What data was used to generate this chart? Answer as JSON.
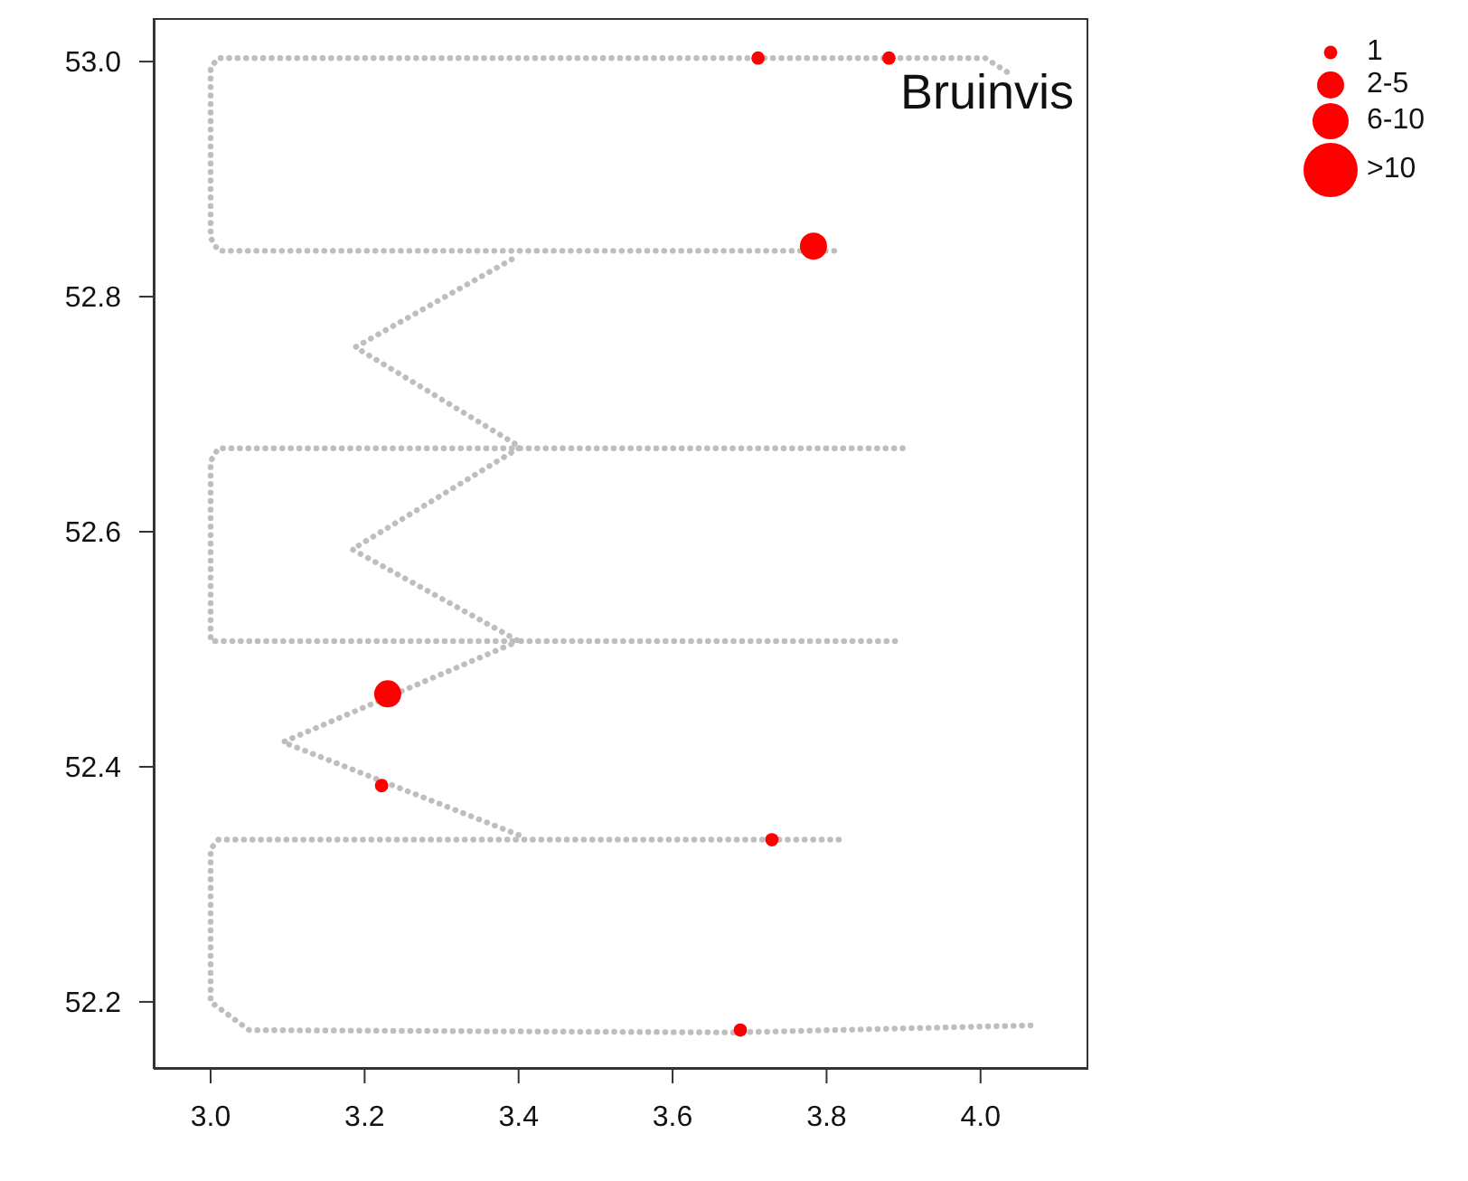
{
  "chart_data": {
    "type": "scatter",
    "title": "Bruinvis",
    "xlim": [
      2.926,
      4.14
    ],
    "ylim": [
      52.143,
      53.037
    ],
    "xticks": [
      {
        "value": 3,
        "label": "3.0"
      },
      3.2,
      3.4,
      3.6,
      3.8,
      {
        "value": 4,
        "label": "4.0"
      }
    ],
    "yticks": [
      52.2,
      52.4,
      52.6,
      52.8,
      {
        "value": 53,
        "label": "53.0"
      }
    ],
    "grid": false,
    "legend": "top right",
    "series": [
      {
        "type": "line",
        "line_style": "dotted",
        "color": "#bebebe",
        "x": [
          4.065,
          3.68,
          3.05,
          3.0,
          3.0,
          3.01,
          3.822
        ],
        "values": [
          52.18,
          52.174,
          52.176,
          52.2,
          52.33,
          52.338,
          52.338
        ]
      },
      {
        "type": "line",
        "line_style": "dotted",
        "color": "#bebebe",
        "x": [
          3.4,
          3.094,
          3.4
        ],
        "values": [
          52.342,
          52.421,
          52.507
        ]
      },
      {
        "type": "line",
        "line_style": "dotted",
        "color": "#bebebe",
        "x": [
          3.889,
          3.0,
          3.0,
          3.01,
          3.908
        ],
        "values": [
          52.507,
          52.507,
          52.66,
          52.671,
          52.671
        ]
      },
      {
        "type": "line",
        "line_style": "dotted",
        "color": "#bebebe",
        "x": [
          3.4,
          3.184,
          3.4
        ],
        "values": [
          52.671,
          52.585,
          52.507
        ]
      },
      {
        "type": "line",
        "line_style": "dotted",
        "color": "#bebebe",
        "x": [
          3.395,
          3.188,
          3.4
        ],
        "values": [
          52.675,
          52.757,
          52.835
        ]
      },
      {
        "type": "line",
        "line_style": "dotted",
        "color": "#bebebe",
        "x": [
          3.81,
          3.01,
          3.0,
          3.0,
          3.01,
          4.006,
          4.042
        ],
        "values": [
          52.839,
          52.839,
          52.85,
          52.995,
          53.003,
          53.003,
          52.988
        ]
      },
      {
        "name": "1",
        "marker": "circle",
        "color": "#ff0000",
        "x": [
          3.711,
          3.881,
          3.222,
          3.729,
          3.688
        ],
        "values": [
          53.003,
          53.003,
          52.384,
          52.338,
          52.176
        ]
      },
      {
        "name": "2-5",
        "marker": "circle",
        "color": "#ff0000",
        "x": [
          3.783,
          3.23
        ],
        "values": [
          52.843,
          52.462
        ]
      },
      {
        "name": "6-10",
        "marker": "circle",
        "color": "#ff0000"
      },
      {
        "name": ">10",
        "marker": "circle",
        "color": "#ff0000"
      }
    ]
  }
}
